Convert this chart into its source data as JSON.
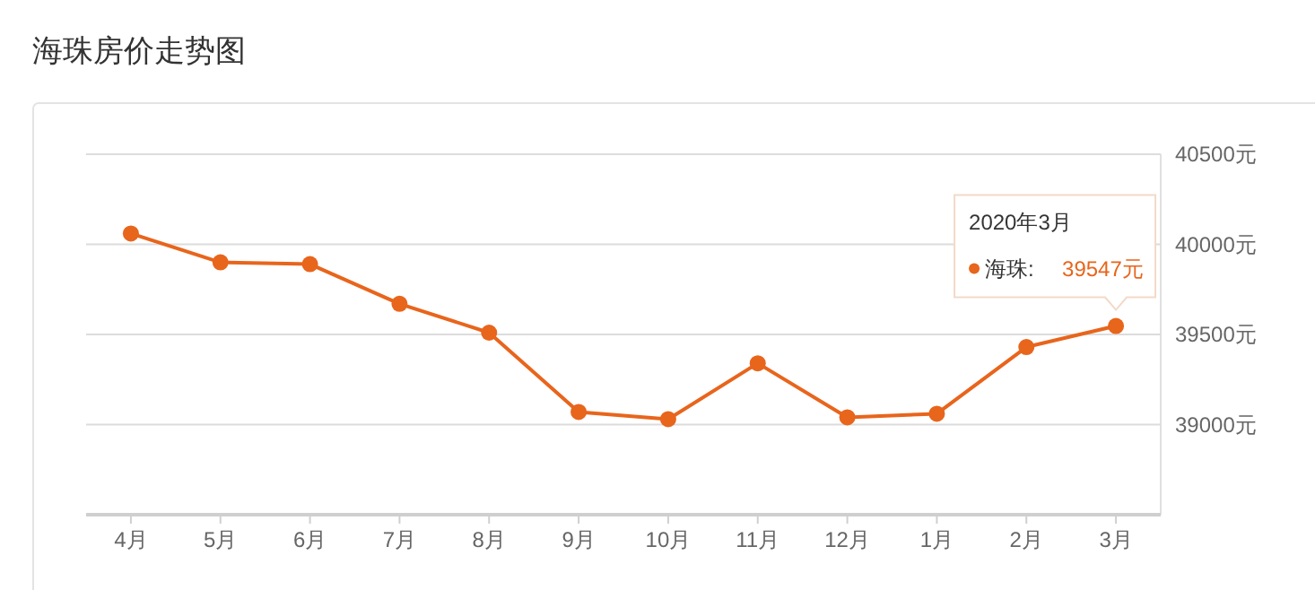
{
  "chart_data": {
    "type": "line",
    "title": "海珠房价走势图",
    "categories": [
      "4月",
      "5月",
      "6月",
      "7月",
      "8月",
      "9月",
      "10月",
      "11月",
      "12月",
      "1月",
      "2月",
      "3月"
    ],
    "series": [
      {
        "name": "海珠:",
        "color": "#e8651c",
        "values": [
          40060,
          39900,
          39890,
          39670,
          39510,
          39070,
          39030,
          39340,
          39040,
          39060,
          39430,
          39547
        ],
        "value_labels": [
          null,
          null,
          null,
          null,
          null,
          null,
          null,
          null,
          null,
          null,
          null,
          "39547元"
        ]
      }
    ],
    "ylim": [
      38500,
      40500
    ],
    "yticks": [
      {
        "value": 39000,
        "label": "39000元"
      },
      {
        "value": 39500,
        "label": "39500元"
      },
      {
        "value": 40000,
        "label": "40000元"
      },
      {
        "value": 40500,
        "label": "40500元"
      }
    ],
    "grid": "y",
    "marker": "circle",
    "line_style": "solid",
    "annotations": [
      "2020年3月"
    ]
  }
}
